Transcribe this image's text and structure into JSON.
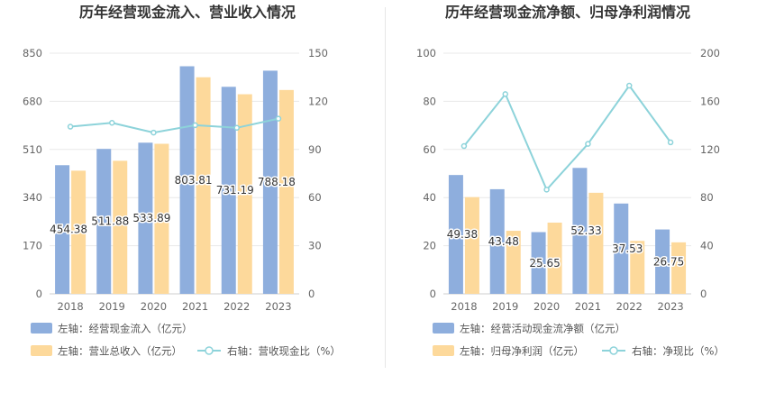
{
  "chart_data": [
    {
      "type": "bar",
      "title": "历年经营现金流入、营业收入情况",
      "categories": [
        "2018",
        "2019",
        "2020",
        "2021",
        "2022",
        "2023"
      ],
      "series": [
        {
          "name": "左轴：经营现金流入（亿元）",
          "axis": "left",
          "kind": "bar",
          "color": "#8eaedd",
          "values": [
            454.38,
            511.88,
            533.89,
            803.81,
            731.19,
            788.18
          ],
          "labels": [
            "454.38",
            "511.88",
            "533.89",
            "803.81",
            "731.19",
            "788.18"
          ]
        },
        {
          "name": "左轴：营业总收入（亿元）",
          "axis": "left",
          "kind": "bar",
          "color": "#fdd99b",
          "values": [
            435,
            470,
            530,
            765,
            705,
            720
          ]
        },
        {
          "name": "右轴：营收现金比（%）",
          "axis": "right",
          "kind": "line",
          "color": "#8dd3da",
          "values": [
            104.2,
            106.6,
            100.5,
            105.1,
            103.5,
            109.2
          ]
        }
      ],
      "left_axis": {
        "min": 0,
        "max": 850,
        "ticks": [
          "0",
          "170",
          "340",
          "510",
          "680",
          "850"
        ]
      },
      "right_axis": {
        "min": 0,
        "max": 150,
        "ticks": [
          "0",
          "30",
          "60",
          "90",
          "120",
          "150"
        ]
      },
      "grid": true,
      "legend": "bottom"
    },
    {
      "type": "bar",
      "title": "历年经营现金流净额、归母净利润情况",
      "categories": [
        "2018",
        "2019",
        "2020",
        "2021",
        "2022",
        "2023"
      ],
      "series": [
        {
          "name": "左轴：经营活动现金流净额（亿元）",
          "axis": "left",
          "kind": "bar",
          "color": "#8eaedd",
          "values": [
            49.38,
            43.48,
            25.65,
            52.33,
            37.53,
            26.75
          ],
          "labels": [
            "49.38",
            "43.48",
            "25.65",
            "52.33",
            "37.53",
            "26.75"
          ]
        },
        {
          "name": "左轴：归母净利润（亿元）",
          "axis": "left",
          "kind": "bar",
          "color": "#fdd99b",
          "values": [
            40.2,
            26.2,
            29.6,
            42.0,
            22.0,
            21.4
          ]
        },
        {
          "name": "右轴：净现比（%）",
          "axis": "right",
          "kind": "line",
          "color": "#8dd3da",
          "values": [
            122.8,
            166.0,
            86.6,
            124.6,
            173.0,
            125.9
          ]
        }
      ],
      "left_axis": {
        "min": 0,
        "max": 100,
        "ticks": [
          "0",
          "20",
          "40",
          "60",
          "80",
          "100"
        ]
      },
      "right_axis": {
        "min": 0,
        "max": 200,
        "ticks": [
          "0",
          "40",
          "80",
          "120",
          "160",
          "200"
        ]
      },
      "grid": true,
      "legend": "bottom"
    }
  ]
}
